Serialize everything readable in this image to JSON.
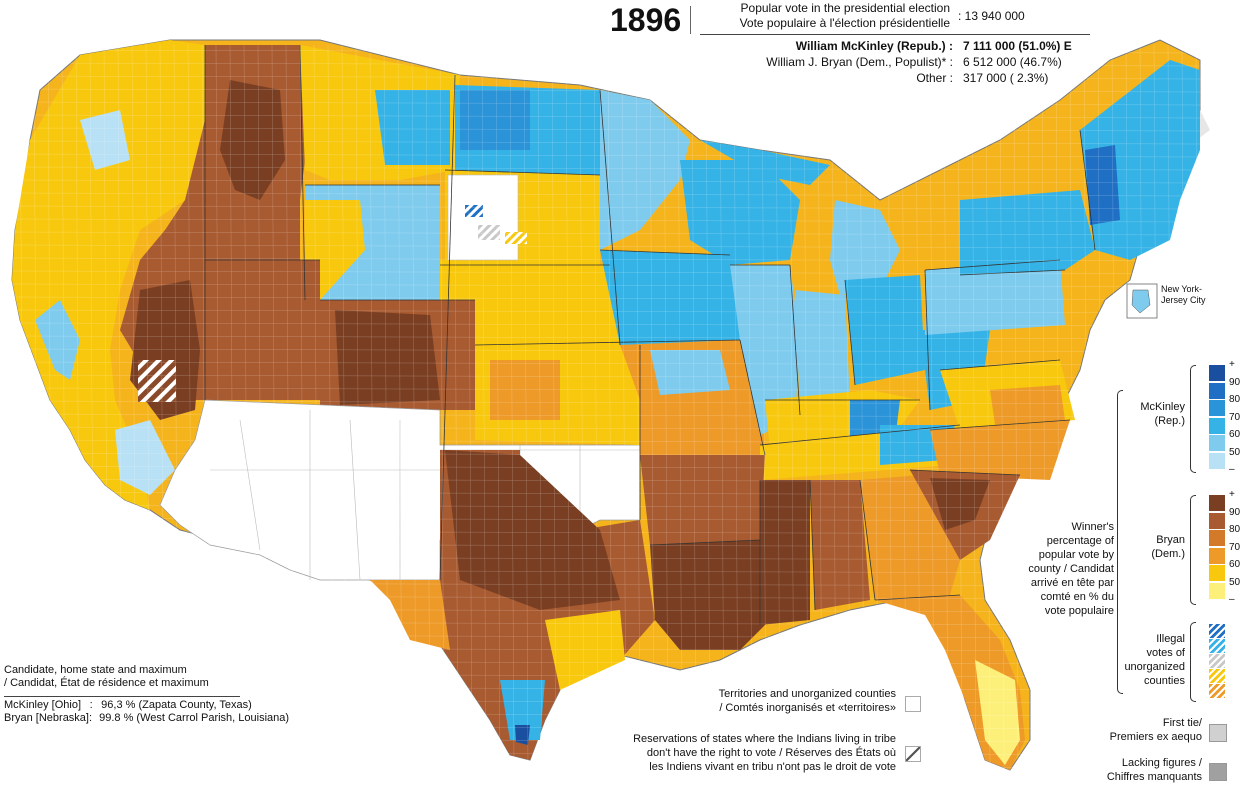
{
  "header": {
    "year": "1896",
    "popular_vote_en": "Popular vote in the presidential election",
    "popular_vote_fr": "Vote populaire à l'élection présidentielle",
    "popular_vote_total": ": 13 940 000"
  },
  "results": [
    {
      "name": "William McKinley (Repub.) :",
      "value": "7 111 000  (51.0%)  E",
      "bold": true
    },
    {
      "name": "William J. Bryan (Dem., Populist)* :",
      "value": "6 512 000  (46.7%)",
      "bold": false
    },
    {
      "name": "Other :",
      "value": "   317 000  (  2.3%)",
      "bold": false
    }
  ],
  "inset_label": "New York-\nJersey City",
  "legend": {
    "mckinley_label": "McKinley\n(Rep.)",
    "bryan_label": "Bryan\n(Dem.)",
    "winner_text": "Winner's\npercentage of\npopular vote by\ncounty / Candidat\narrivé en tête par\ncomté en % du\nvote populaire",
    "ticks": [
      "+",
      "90",
      "80",
      "70",
      "60",
      "50",
      "–"
    ],
    "mckinley_colors": [
      "#1a4fa0",
      "#1f6fc4",
      "#2b93d8",
      "#35b3e6",
      "#7fcbee",
      "#b8e1f5"
    ],
    "bryan_colors": [
      "#7a3f23",
      "#a85a30",
      "#d27a2a",
      "#ee9a28",
      "#f8c80e",
      "#fdf07a"
    ],
    "illegal_text": "Illegal\nvotes of\nunorganized\ncounties",
    "first_tie": "First tie/\nPremiers ex aequo",
    "lacking": "Lacking figures /\nChiffres manquants",
    "tie_color": "#d0d0d0",
    "lacking_color": "#a0a0a0"
  },
  "notes": {
    "territories": "Territories and unorganized counties\n/ Comtés inorganisés et «territoires»",
    "reservations": "Reservations of states where the Indians living in tribe\ndon't have the right to vote / Réserves des États où\nles Indiens vivant en tribu n'ont pas le droit de vote"
  },
  "candidates": {
    "title_en": "Candidate, home state and maximum",
    "title_fr": "/ Candidat, État de résidence et maximum",
    "rows": [
      {
        "name": "McKinley [Ohio]",
        "sep": ":",
        "value": "96,3 % (Zapata County, Texas)"
      },
      {
        "name": "Bryan [Nebraska]:",
        "sep": "",
        "value": "99.8 % (West Carrol Parish, Louisiana)"
      }
    ]
  }
}
